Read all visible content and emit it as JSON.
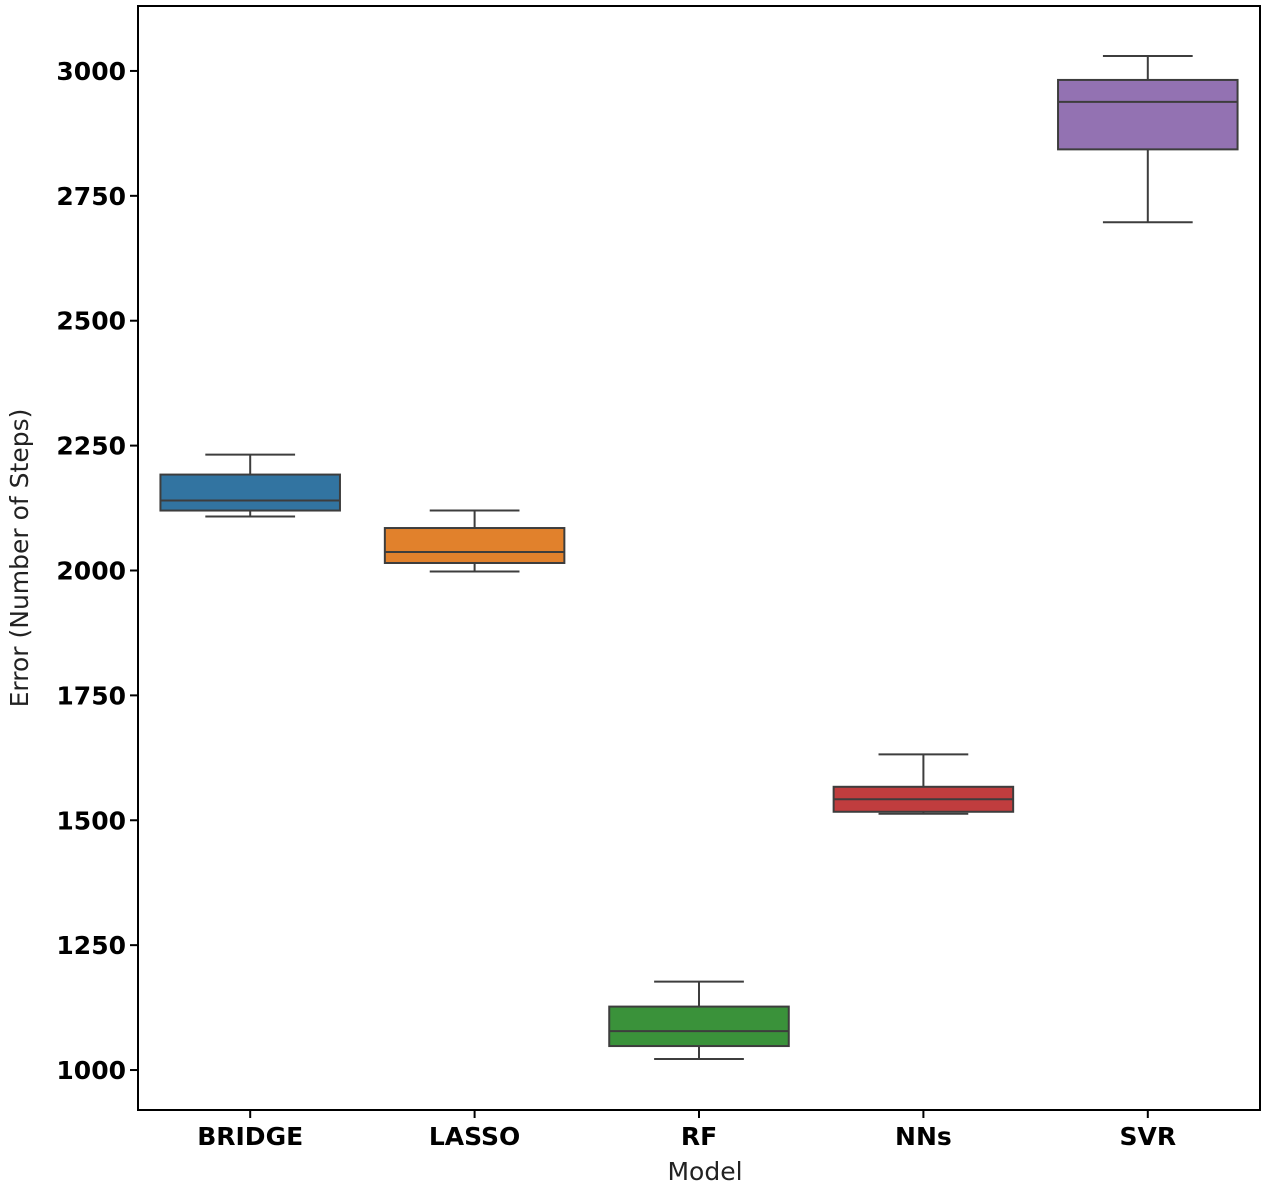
{
  "chart_data": {
    "type": "box",
    "title": "",
    "xlabel": "Model",
    "ylabel": "Error (Number of Steps)",
    "ylim": [
      920,
      3130
    ],
    "yticks": [
      1000,
      1250,
      1500,
      1750,
      2000,
      2250,
      2500,
      2750,
      3000
    ],
    "grid": false,
    "categories": [
      "BRIDGE",
      "LASSO",
      "RF",
      "NNs",
      "SVR"
    ],
    "series": [
      {
        "category": "BRIDGE",
        "color": "#3274a1",
        "whisker_low": 2108,
        "q1": 2120,
        "median": 2140,
        "q3": 2192,
        "whisker_high": 2232
      },
      {
        "category": "LASSO",
        "color": "#e1812c",
        "whisker_low": 1998,
        "q1": 2015,
        "median": 2037,
        "q3": 2085,
        "whisker_high": 2120
      },
      {
        "category": "RF",
        "color": "#3a923a",
        "whisker_low": 1022,
        "q1": 1048,
        "median": 1078,
        "q3": 1127,
        "whisker_high": 1177
      },
      {
        "category": "NNs",
        "color": "#c03d3e",
        "whisker_low": 1513,
        "q1": 1517,
        "median": 1542,
        "q3": 1567,
        "whisker_high": 1632
      },
      {
        "category": "SVR",
        "color": "#9372b2",
        "whisker_low": 2697,
        "q1": 2843,
        "median": 2938,
        "q3": 2982,
        "whisker_high": 3030
      }
    ]
  }
}
